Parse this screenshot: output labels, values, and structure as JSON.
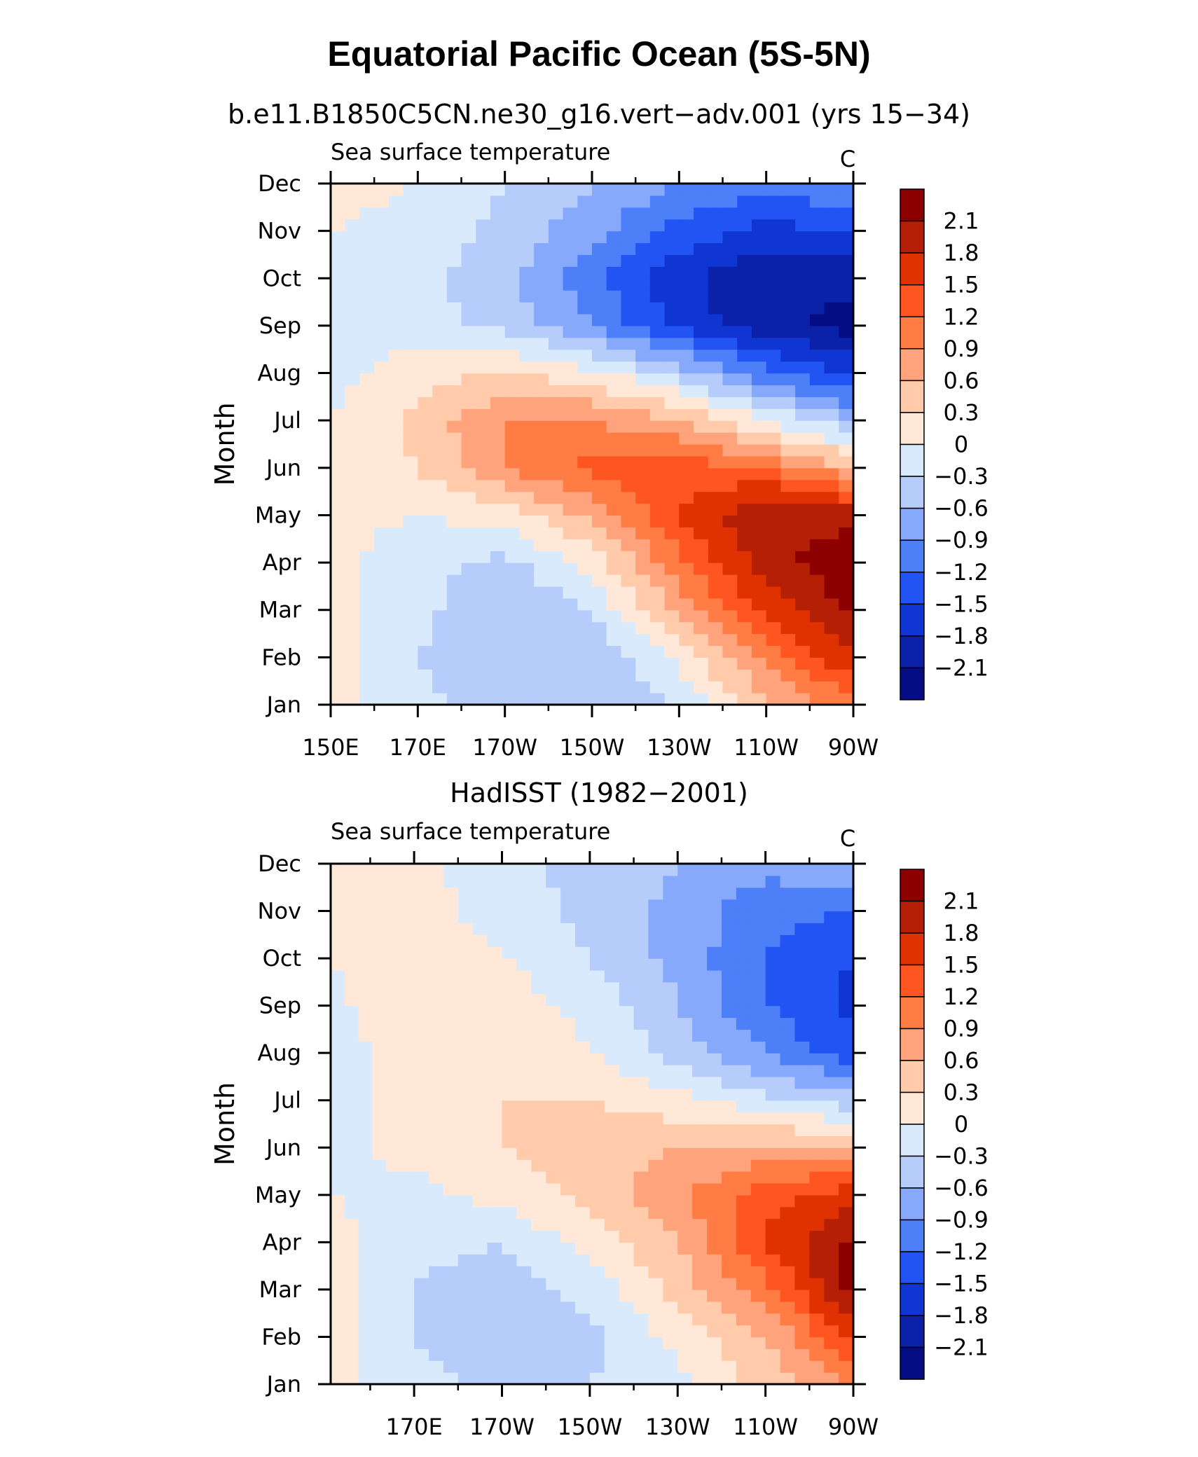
{
  "title": "Equatorial Pacific Ocean (5S-5N)",
  "chart_data": [
    {
      "type": "heatmap",
      "subtitle": "b.e11.B1850C5CN.ne30_g16.vert−adv.001 (yrs 15−34)",
      "left_label": "Sea surface temperature",
      "units": "C",
      "ylabel": "Month",
      "y_categories": [
        "Jan",
        "Feb",
        "Mar",
        "Apr",
        "May",
        "Jun",
        "Jul",
        "Aug",
        "Sep",
        "Oct",
        "Nov",
        "Dec"
      ],
      "x_tick_labels": [
        "150E",
        "170E",
        "170W",
        "150W",
        "130W",
        "110W",
        "90W"
      ],
      "x_tick_positions": [
        150,
        170,
        190,
        210,
        230,
        250,
        270
      ],
      "xlim": [
        150,
        270
      ],
      "x_grid_lon": [
        150,
        170,
        190,
        210,
        230,
        250,
        270
      ],
      "values": [
        [
          0.1,
          -0.2,
          -0.5,
          -0.6,
          -0.3,
          0.5,
          1.1
        ],
        [
          0.1,
          -0.3,
          -0.6,
          -0.6,
          0.1,
          1.0,
          1.8
        ],
        [
          0.1,
          -0.2,
          -0.6,
          -0.3,
          0.7,
          1.6,
          2.2
        ],
        [
          0.1,
          -0.2,
          -0.4,
          0.1,
          1.1,
          2.0,
          2.3
        ],
        [
          0.1,
          0.0,
          0.1,
          0.7,
          1.5,
          2.1,
          2.0
        ],
        [
          0.1,
          0.3,
          0.9,
          1.3,
          1.4,
          1.2,
          0.6
        ],
        [
          0.0,
          0.4,
          0.9,
          0.9,
          0.6,
          0.0,
          -0.6
        ],
        [
          -0.1,
          0.2,
          0.3,
          0.1,
          -0.4,
          -1.1,
          -1.6
        ],
        [
          -0.2,
          -0.2,
          -0.4,
          -0.9,
          -1.6,
          -2.0,
          -2.2
        ],
        [
          -0.1,
          -0.2,
          -0.5,
          -1.1,
          -1.7,
          -2.1,
          -2.0
        ],
        [
          0.0,
          -0.1,
          -0.4,
          -0.8,
          -1.3,
          -1.6,
          -1.5
        ],
        [
          0.1,
          0.0,
          -0.3,
          -0.6,
          -0.9,
          -1.1,
          -0.9
        ]
      ]
    },
    {
      "type": "heatmap",
      "subtitle": "HadISST (1982−2001)",
      "left_label": "Sea surface temperature",
      "units": "C",
      "ylabel": "Month",
      "y_categories": [
        "Jan",
        "Feb",
        "Mar",
        "Apr",
        "May",
        "Jun",
        "Jul",
        "Aug",
        "Sep",
        "Oct",
        "Nov",
        "Dec"
      ],
      "x_tick_labels": [
        "170E",
        "170W",
        "150W",
        "130W",
        "110W",
        "90W"
      ],
      "x_tick_positions": [
        170,
        190,
        210,
        230,
        250,
        270
      ],
      "xlim": [
        151,
        270
      ],
      "x_grid_lon": [
        151,
        170,
        190,
        210,
        230,
        250,
        270
      ],
      "values": [
        [
          0.1,
          -0.2,
          -0.4,
          -0.3,
          -0.1,
          0.4,
          0.9
        ],
        [
          0.1,
          -0.3,
          -0.5,
          -0.4,
          0.1,
          0.6,
          1.5
        ],
        [
          0.1,
          -0.3,
          -0.5,
          -0.2,
          0.4,
          1.1,
          2.2
        ],
        [
          0.1,
          -0.2,
          -0.3,
          0.1,
          0.6,
          1.5,
          2.2
        ],
        [
          0.0,
          -0.1,
          0.1,
          0.4,
          0.8,
          1.4,
          1.7
        ],
        [
          -0.1,
          0.1,
          0.3,
          0.5,
          0.6,
          0.7,
          0.6
        ],
        [
          -0.1,
          0.1,
          0.3,
          0.3,
          0.1,
          -0.2,
          -0.5
        ],
        [
          -0.2,
          0.2,
          0.2,
          0.0,
          -0.4,
          -0.9,
          -1.4
        ],
        [
          -0.1,
          0.3,
          0.2,
          -0.1,
          -0.6,
          -1.2,
          -1.6
        ],
        [
          0.0,
          0.2,
          0.0,
          -0.3,
          -0.7,
          -1.2,
          -1.5
        ],
        [
          0.1,
          0.1,
          -0.1,
          -0.4,
          -0.7,
          -1.1,
          -1.2
        ],
        [
          0.1,
          0.1,
          -0.2,
          -0.4,
          -0.6,
          -0.8,
          -0.6
        ]
      ]
    }
  ],
  "colorbar": {
    "labels": [
      "2.1",
      "1.8",
      "1.5",
      "1.2",
      "0.9",
      "0.6",
      "0.3",
      "0",
      "−0.3",
      "−0.6",
      "−0.9",
      "−1.2",
      "−1.5",
      "−1.8",
      "−2.1"
    ],
    "colors": [
      "#8c0000",
      "#b51f05",
      "#e03200",
      "#ff5520",
      "#ff7d45",
      "#ffa37d",
      "#ffcbab",
      "#ffe8d8",
      "#d9eafd",
      "#b6cdfc",
      "#87a9fb",
      "#4d7ff9",
      "#2154f2",
      "#0f35d3",
      "#0b22a8",
      "#050d85"
    ],
    "levels": [
      2.1,
      1.8,
      1.5,
      1.2,
      0.9,
      0.6,
      0.3,
      0,
      -0.3,
      -0.6,
      -0.9,
      -1.2,
      -1.5,
      -1.8,
      -2.1
    ]
  }
}
